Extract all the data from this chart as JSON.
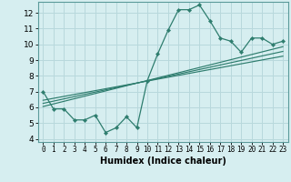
{
  "xlabel": "Humidex (Indice chaleur)",
  "background_color": "#d6eef0",
  "line_color": "#2e7d6e",
  "grid_color": "#b8d8dc",
  "xlim": [
    -0.5,
    23.5
  ],
  "ylim": [
    3.8,
    12.7
  ],
  "yticks": [
    4,
    5,
    6,
    7,
    8,
    9,
    10,
    11,
    12
  ],
  "xticks": [
    0,
    1,
    2,
    3,
    4,
    5,
    6,
    7,
    8,
    9,
    10,
    11,
    12,
    13,
    14,
    15,
    16,
    17,
    18,
    19,
    20,
    21,
    22,
    23
  ],
  "series1_x": [
    0,
    1,
    2,
    3,
    4,
    5,
    6,
    7,
    8,
    9,
    10,
    11,
    12,
    13,
    14,
    15,
    16,
    17,
    18,
    19,
    20,
    21,
    22,
    23
  ],
  "series1_y": [
    7.0,
    5.9,
    5.9,
    5.2,
    5.2,
    5.5,
    4.4,
    4.7,
    5.4,
    4.7,
    7.7,
    9.4,
    10.9,
    12.2,
    12.2,
    12.5,
    11.5,
    10.4,
    10.2,
    9.5,
    10.4,
    10.4,
    10.0,
    10.2
  ],
  "reg_lines": [
    [
      [
        0,
        23
      ],
      [
        6.05,
        9.85
      ]
    ],
    [
      [
        0,
        23
      ],
      [
        6.25,
        9.55
      ]
    ],
    [
      [
        0,
        23
      ],
      [
        6.45,
        9.25
      ]
    ]
  ],
  "xlabel_fontsize": 7,
  "tick_fontsize_x": 5.5,
  "tick_fontsize_y": 6.5
}
